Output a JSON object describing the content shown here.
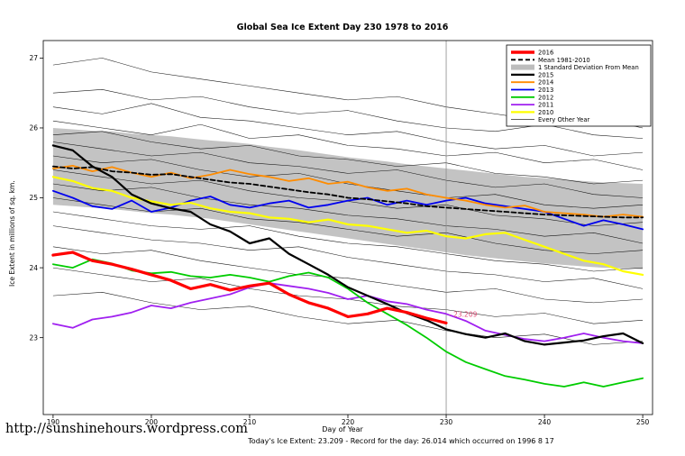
{
  "page": {
    "footer_caption": "Today's Ice Extent: 23.209  - Record for the day: 26.014 which occurred on 1996 8 17",
    "url": "http://sunshinehours.wordpress.com"
  },
  "chart_data": {
    "type": "line",
    "title": "Global Sea Ice Extent Day 230 1978 to 2016",
    "xlabel": "Day of Year",
    "ylabel": "Ice Extent in millions of sq. km.",
    "xlim": [
      189,
      251
    ],
    "ylim": [
      21.9,
      27.25
    ],
    "xticks": [
      190,
      200,
      210,
      220,
      230,
      240,
      250
    ],
    "yticks": [
      23,
      24,
      25,
      26,
      27
    ],
    "grid": false,
    "legend_position": "top-right",
    "marker_line_x": 230,
    "annotation": {
      "text": "- 23.209",
      "x": 230,
      "y": 23.3,
      "color": "#e0507a"
    },
    "x": [
      190,
      192,
      194,
      196,
      198,
      200,
      202,
      204,
      206,
      208,
      210,
      212,
      214,
      216,
      218,
      220,
      222,
      224,
      226,
      228,
      230,
      232,
      234,
      236,
      238,
      240,
      242,
      244,
      246,
      248,
      250
    ],
    "band": {
      "name": "1 Standard Deviation From Mean",
      "fill": "#bdbdbd",
      "upper": [
        26.0,
        25.98,
        25.96,
        25.95,
        25.92,
        25.9,
        25.88,
        25.85,
        25.82,
        25.8,
        25.77,
        25.73,
        25.7,
        25.66,
        25.62,
        25.58,
        25.55,
        25.52,
        25.48,
        25.45,
        25.42,
        25.39,
        25.36,
        25.33,
        25.3,
        25.28,
        25.26,
        25.24,
        25.22,
        25.21,
        25.2
      ],
      "lower": [
        24.9,
        24.88,
        24.86,
        24.84,
        24.81,
        24.78,
        24.76,
        24.73,
        24.7,
        24.66,
        24.62,
        24.58,
        24.54,
        24.5,
        24.46,
        24.42,
        24.38,
        24.34,
        24.3,
        24.26,
        24.22,
        24.18,
        24.15,
        24.12,
        24.09,
        24.06,
        24.04,
        24.02,
        24.0,
        23.99,
        23.98
      ]
    },
    "series": [
      {
        "name": "2013",
        "color": "#0000ee",
        "width": 1.8,
        "values": [
          25.1,
          25.0,
          24.88,
          24.84,
          24.96,
          24.8,
          24.86,
          24.96,
          25.02,
          24.9,
          24.86,
          24.92,
          24.96,
          24.86,
          24.9,
          24.96,
          25.0,
          24.9,
          24.96,
          24.9,
          24.96,
          25.0,
          24.92,
          24.88,
          24.84,
          24.8,
          24.7,
          24.6,
          24.68,
          24.62,
          24.55
        ]
      },
      {
        "name": "2010",
        "color": "#ffff00",
        "width": 2.2,
        "values": [
          25.3,
          25.24,
          25.14,
          25.1,
          25.0,
          24.95,
          24.9,
          24.93,
          24.85,
          24.8,
          24.78,
          24.72,
          24.7,
          24.65,
          24.69,
          24.62,
          24.6,
          24.55,
          24.5,
          24.53,
          24.45,
          24.42,
          24.48,
          24.5,
          24.4,
          24.3,
          24.2,
          24.1,
          24.05,
          23.95,
          23.9
        ]
      },
      {
        "name": "2014",
        "color": "#ff8c00",
        "width": 1.8,
        "values": [
          25.42,
          25.46,
          25.38,
          25.44,
          25.36,
          25.3,
          25.36,
          25.28,
          25.33,
          25.4,
          25.34,
          25.3,
          25.24,
          25.28,
          25.2,
          25.23,
          25.15,
          25.1,
          25.13,
          25.05,
          25.0,
          24.96,
          24.9,
          24.86,
          24.89,
          24.8,
          24.78,
          24.76,
          24.73,
          24.76,
          24.73
        ]
      },
      {
        "name": "mean-1981-2010",
        "color": "#000000",
        "width": 1.8,
        "dash": "5,3",
        "values": [
          25.45,
          25.42,
          25.44,
          25.38,
          25.36,
          25.33,
          25.34,
          25.3,
          25.26,
          25.22,
          25.2,
          25.16,
          25.12,
          25.08,
          25.05,
          25.0,
          24.98,
          24.95,
          24.92,
          24.88,
          24.86,
          24.84,
          24.82,
          24.8,
          24.78,
          24.76,
          24.75,
          24.74,
          24.73,
          24.72,
          24.72
        ]
      },
      {
        "name": "2011",
        "color": "#a020f0",
        "width": 1.8,
        "values": [
          23.2,
          23.14,
          23.26,
          23.3,
          23.36,
          23.46,
          23.42,
          23.5,
          23.56,
          23.62,
          23.72,
          23.78,
          23.74,
          23.7,
          23.64,
          23.55,
          23.6,
          23.52,
          23.48,
          23.4,
          23.34,
          23.24,
          23.1,
          23.04,
          22.98,
          22.95,
          23.0,
          23.06,
          23.0,
          22.95,
          22.92
        ]
      },
      {
        "name": "2012",
        "color": "#00cc00",
        "width": 1.8,
        "values": [
          24.05,
          24.0,
          24.12,
          24.06,
          23.96,
          23.92,
          23.94,
          23.88,
          23.86,
          23.9,
          23.86,
          23.8,
          23.88,
          23.93,
          23.86,
          23.7,
          23.5,
          23.34,
          23.18,
          23.0,
          22.8,
          22.65,
          22.55,
          22.45,
          22.4,
          22.34,
          22.3,
          22.36,
          22.3,
          22.36,
          22.42
        ]
      },
      {
        "name": "2015",
        "color": "#000000",
        "width": 2.2,
        "values": [
          25.75,
          25.68,
          25.45,
          25.3,
          25.05,
          24.92,
          24.85,
          24.8,
          24.62,
          24.52,
          24.35,
          24.42,
          24.2,
          24.05,
          23.9,
          23.72,
          23.6,
          23.48,
          23.35,
          23.25,
          23.12,
          23.05,
          23.0,
          23.06,
          22.95,
          22.9,
          22.93,
          22.96,
          23.02,
          23.06,
          22.92
        ]
      },
      {
        "name": "2016",
        "color": "#ff0000",
        "width": 3.2,
        "values": [
          24.18,
          24.22,
          24.1,
          24.05,
          23.98,
          23.9,
          23.82,
          23.7,
          23.76,
          23.68,
          23.74,
          23.78,
          23.62,
          23.5,
          23.42,
          23.3,
          23.34,
          23.42,
          23.36,
          23.28,
          23.21
        ]
      }
    ],
    "background_x": [
      190,
      195,
      200,
      205,
      210,
      215,
      220,
      225,
      230,
      235,
      240,
      245,
      250
    ],
    "background_series": [
      [
        26.9,
        27.0,
        26.8,
        26.7,
        26.6,
        26.5,
        26.4,
        26.45,
        26.3,
        26.2,
        26.1,
        26.15,
        26.0
      ],
      [
        26.5,
        26.55,
        26.4,
        26.45,
        26.3,
        26.2,
        26.25,
        26.1,
        26.0,
        25.95,
        26.05,
        25.9,
        25.85
      ],
      [
        26.3,
        26.2,
        26.35,
        26.15,
        26.1,
        26.0,
        25.9,
        25.95,
        25.8,
        25.7,
        25.75,
        25.6,
        25.65
      ],
      [
        26.1,
        26.0,
        25.9,
        26.05,
        25.85,
        25.9,
        25.75,
        25.7,
        25.6,
        25.65,
        25.5,
        25.55,
        25.4
      ],
      [
        25.9,
        25.95,
        25.8,
        25.7,
        25.75,
        25.6,
        25.55,
        25.45,
        25.5,
        25.35,
        25.3,
        25.2,
        25.25
      ],
      [
        25.8,
        25.7,
        25.6,
        25.65,
        25.5,
        25.45,
        25.35,
        25.4,
        25.25,
        25.15,
        25.2,
        25.05,
        25.0
      ],
      [
        25.6,
        25.5,
        25.55,
        25.4,
        25.3,
        25.35,
        25.2,
        25.1,
        25.0,
        25.05,
        24.9,
        24.85,
        24.9
      ],
      [
        25.4,
        25.3,
        25.2,
        25.25,
        25.1,
        25.0,
        24.95,
        24.85,
        24.9,
        24.75,
        24.7,
        24.6,
        24.65
      ],
      [
        25.2,
        25.1,
        25.15,
        25.0,
        24.9,
        24.85,
        24.75,
        24.7,
        24.6,
        24.55,
        24.45,
        24.5,
        24.35
      ],
      [
        25.0,
        24.9,
        24.8,
        24.85,
        24.7,
        24.65,
        24.55,
        24.45,
        24.5,
        24.35,
        24.25,
        24.2,
        24.25
      ],
      [
        24.8,
        24.7,
        24.6,
        24.55,
        24.6,
        24.45,
        24.35,
        24.3,
        24.2,
        24.1,
        24.05,
        23.95,
        24.0
      ],
      [
        24.6,
        24.5,
        24.4,
        24.35,
        24.25,
        24.3,
        24.15,
        24.05,
        23.95,
        23.9,
        23.8,
        23.85,
        23.7
      ],
      [
        24.3,
        24.2,
        24.25,
        24.1,
        24.0,
        23.9,
        23.85,
        23.75,
        23.65,
        23.7,
        23.55,
        23.5,
        23.55
      ],
      [
        24.0,
        23.9,
        23.8,
        23.85,
        23.7,
        23.6,
        23.55,
        23.45,
        23.4,
        23.3,
        23.35,
        23.2,
        23.25
      ],
      [
        23.6,
        23.65,
        23.5,
        23.4,
        23.45,
        23.3,
        23.2,
        23.25,
        23.1,
        23.0,
        23.05,
        22.9,
        22.95
      ]
    ],
    "legend": [
      {
        "label": "2016",
        "color": "#ff0000",
        "width": 3.5
      },
      {
        "label": "Mean 1981-2010",
        "color": "#000000",
        "width": 1.8,
        "dash": "5,3"
      },
      {
        "label": "1 Standard Deviation From Mean",
        "color": "#bdbdbd",
        "band": true
      },
      {
        "label": "2015",
        "color": "#000000",
        "width": 2.2
      },
      {
        "label": "2014",
        "color": "#ff8c00",
        "width": 1.8
      },
      {
        "label": "2013",
        "color": "#0000ee",
        "width": 1.8
      },
      {
        "label": "2012",
        "color": "#00cc00",
        "width": 1.8
      },
      {
        "label": "2011",
        "color": "#a020f0",
        "width": 1.8
      },
      {
        "label": "2010",
        "color": "#ffff00",
        "width": 2.2
      },
      {
        "label": "Every Other Year",
        "color": "#000000",
        "width": 0.6
      }
    ]
  }
}
